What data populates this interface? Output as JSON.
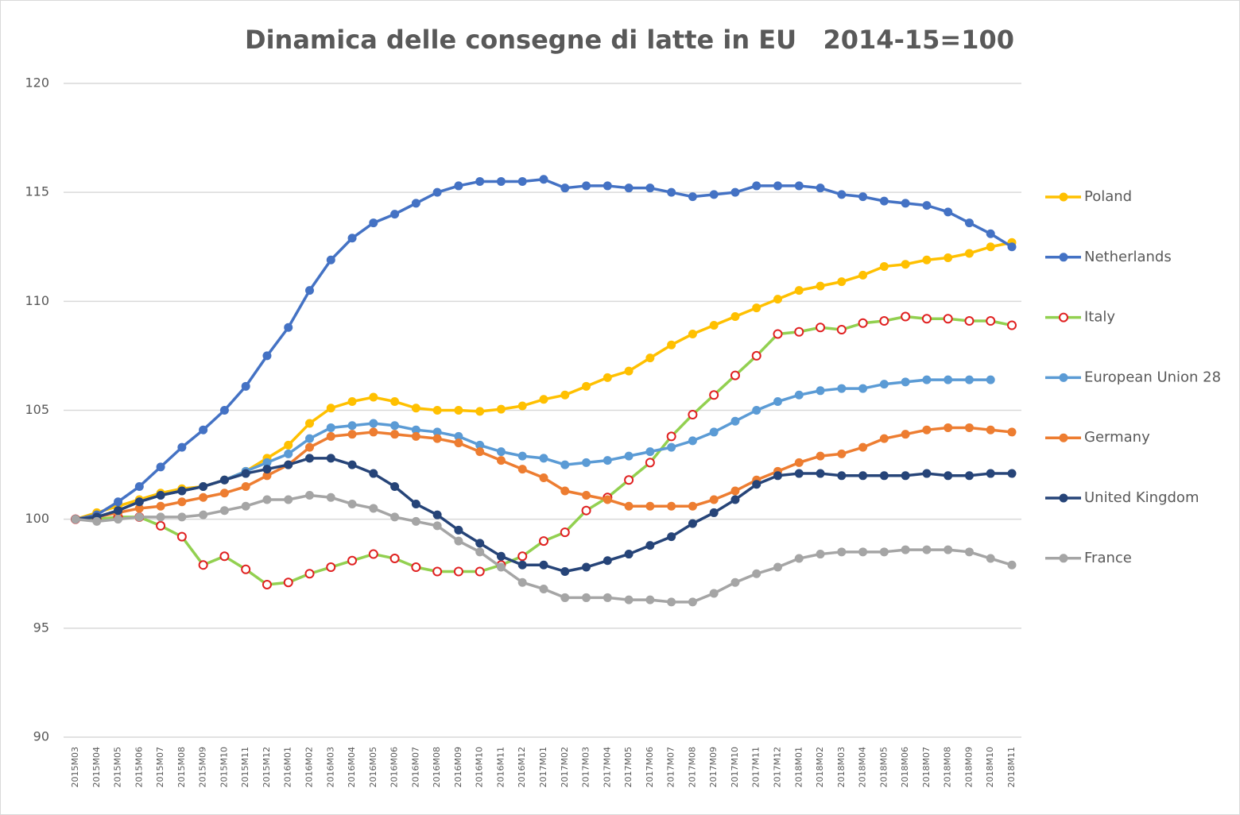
{
  "chart_data": {
    "type": "line",
    "title": "Dinamica delle consegne di latte in EU   2014-15=100",
    "categories": [
      "2015M03",
      "2015M04",
      "2015M05",
      "2015M06",
      "2015M07",
      "2015M08",
      "2015M09",
      "2015M10",
      "2015M11",
      "2015M12",
      "2016M01",
      "2016M02",
      "2016M03",
      "2016M04",
      "2016M05",
      "2016M06",
      "2016M07",
      "2016M08",
      "2016M09",
      "2016M10",
      "2016M11",
      "2016M12",
      "2017M01",
      "2017M02",
      "2017M03",
      "2017M04",
      "2017M05",
      "2017M06",
      "2017M07",
      "2017M08",
      "2017M09",
      "2017M10",
      "2017M11",
      "2017M12",
      "2018M01",
      "2018M02",
      "2018M03",
      "2018M04",
      "2018M05",
      "2018M06",
      "2018M07",
      "2018M08",
      "2018M09",
      "2018M10",
      "2018M11"
    ],
    "ylim": [
      90,
      120
    ],
    "yticks": [
      90,
      95,
      100,
      105,
      110,
      115,
      120
    ],
    "grid": true,
    "legend": "right",
    "series": [
      {
        "name": "Poland",
        "color": "#ffc000",
        "values": [
          100,
          100.3,
          100.6,
          100.9,
          101.2,
          101.4,
          101.5,
          101.8,
          102.2,
          102.8,
          103.4,
          104.4,
          105.1,
          105.4,
          105.6,
          105.4,
          105.1,
          105.0,
          105.0,
          104.95,
          105.05,
          105.2,
          105.5,
          105.7,
          106.1,
          106.5,
          106.8,
          107.4,
          108.0,
          108.5,
          108.9,
          109.3,
          109.7,
          110.1,
          110.5,
          110.7,
          110.9,
          111.2,
          111.6,
          111.7,
          111.9,
          112.0,
          112.2,
          112.5,
          112.7
        ]
      },
      {
        "name": "Netherlands",
        "color": "#4472c4",
        "values": [
          100,
          100.2,
          100.8,
          101.5,
          102.4,
          103.3,
          104.1,
          105.0,
          106.1,
          107.5,
          108.8,
          110.5,
          111.9,
          112.9,
          113.6,
          114.0,
          114.5,
          115.0,
          115.3,
          115.5,
          115.5,
          115.5,
          115.6,
          115.2,
          115.3,
          115.3,
          115.2,
          115.2,
          115.0,
          114.8,
          114.9,
          115.0,
          115.3,
          115.3,
          115.3,
          115.2,
          114.9,
          114.8,
          114.6,
          114.5,
          114.4,
          114.1,
          113.6,
          113.1,
          112.5
        ]
      },
      {
        "name": "Italy",
        "color": "#92d050",
        "marker_color": "#e02020",
        "marker_fill": "#ffffff",
        "values": [
          100,
          100,
          100.1,
          100.1,
          99.7,
          99.2,
          97.9,
          98.3,
          97.7,
          97.0,
          97.1,
          97.5,
          97.8,
          98.1,
          98.4,
          98.2,
          97.8,
          97.6,
          97.6,
          97.6,
          97.9,
          98.3,
          99.0,
          99.4,
          100.4,
          101.0,
          101.8,
          102.6,
          103.8,
          104.8,
          105.7,
          106.6,
          107.5,
          108.5,
          108.6,
          108.8,
          108.7,
          109.0,
          109.1,
          109.3,
          109.2,
          109.2,
          109.1,
          109.1,
          108.9
        ]
      },
      {
        "name": "European Union 28",
        "color": "#5b9bd5",
        "values": [
          100,
          100.1,
          100.4,
          100.8,
          101.1,
          101.3,
          101.5,
          101.8,
          102.2,
          102.6,
          103.0,
          103.7,
          104.2,
          104.3,
          104.4,
          104.3,
          104.1,
          104.0,
          103.8,
          103.4,
          103.1,
          102.9,
          102.8,
          102.5,
          102.6,
          102.7,
          102.9,
          103.1,
          103.3,
          103.6,
          104.0,
          104.5,
          105.0,
          105.4,
          105.7,
          105.9,
          106.0,
          106.0,
          106.2,
          106.3,
          106.4,
          106.4,
          106.4,
          106.4,
          null
        ]
      },
      {
        "name": "Germany",
        "color": "#ed7d31",
        "values": [
          100,
          100.1,
          100.3,
          100.5,
          100.6,
          100.8,
          101.0,
          101.2,
          101.5,
          102.0,
          102.5,
          103.3,
          103.8,
          103.9,
          104.0,
          103.9,
          103.8,
          103.7,
          103.5,
          103.1,
          102.7,
          102.3,
          101.9,
          101.3,
          101.1,
          100.9,
          100.6,
          100.6,
          100.6,
          100.6,
          100.9,
          101.3,
          101.8,
          102.2,
          102.6,
          102.9,
          103.0,
          103.3,
          103.7,
          103.9,
          104.1,
          104.2,
          104.2,
          104.1,
          104.0
        ]
      },
      {
        "name": "United Kingdom",
        "color": "#264478",
        "values": [
          100,
          100.1,
          100.4,
          100.8,
          101.1,
          101.3,
          101.5,
          101.8,
          102.1,
          102.3,
          102.5,
          102.8,
          102.8,
          102.5,
          102.1,
          101.5,
          100.7,
          100.2,
          99.5,
          98.9,
          98.3,
          97.9,
          97.9,
          97.6,
          97.8,
          98.1,
          98.4,
          98.8,
          99.2,
          99.8,
          100.3,
          100.9,
          101.6,
          102.0,
          102.1,
          102.1,
          102.0,
          102.0,
          102.0,
          102.0,
          102.1,
          102.0,
          102.0,
          102.1,
          102.1
        ]
      },
      {
        "name": "France",
        "color": "#a5a5a5",
        "values": [
          100,
          99.9,
          100.0,
          100.1,
          100.1,
          100.1,
          100.2,
          100.4,
          100.6,
          100.9,
          100.9,
          101.1,
          101.0,
          100.7,
          100.5,
          100.1,
          99.9,
          99.7,
          99.0,
          98.5,
          97.8,
          97.1,
          96.8,
          96.4,
          96.4,
          96.4,
          96.3,
          96.3,
          96.2,
          96.2,
          96.6,
          97.1,
          97.5,
          97.8,
          98.2,
          98.4,
          98.5,
          98.5,
          98.5,
          98.6,
          98.6,
          98.6,
          98.5,
          98.2,
          97.9
        ]
      }
    ]
  }
}
